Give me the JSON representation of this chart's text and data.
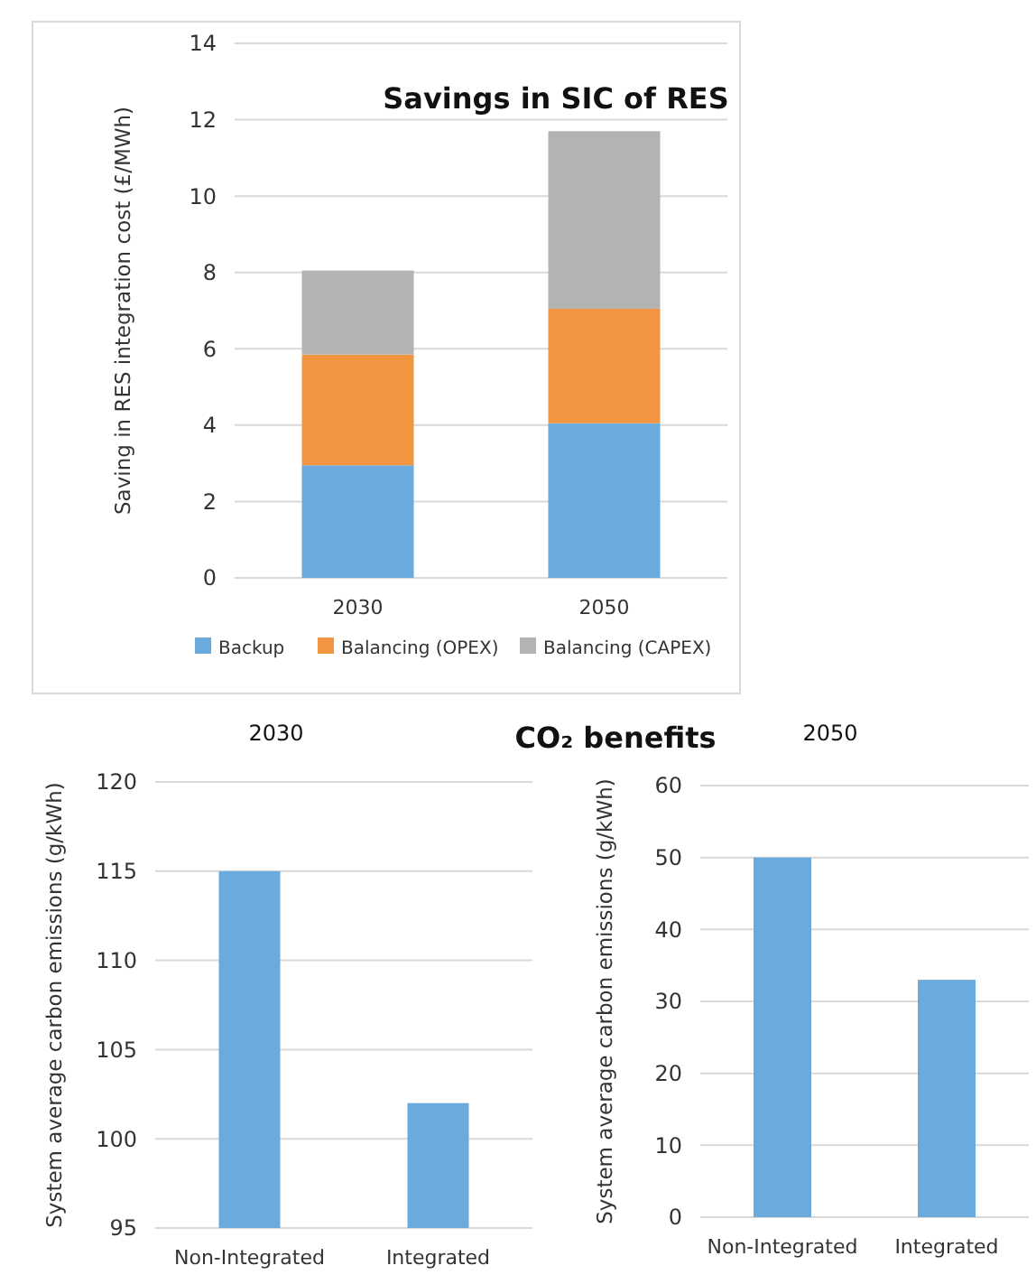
{
  "chart_data": [
    {
      "type": "bar",
      "title": "Savings in SIC of RES",
      "ylabel": "Saving in RES integration cost (£/MWh)",
      "categories": [
        "2030",
        "2050"
      ],
      "stacked": true,
      "series": [
        {
          "name": "Backup",
          "color": "#6aaadc",
          "values": [
            2.95,
            4.05
          ]
        },
        {
          "name": "Balancing (OPEX)",
          "color": "#f29540",
          "values": [
            2.9,
            3.0
          ]
        },
        {
          "name": "Balancing (CAPEX)",
          "color": "#b3b3b3",
          "values": [
            2.2,
            4.65
          ]
        }
      ],
      "ylim": [
        0,
        14
      ],
      "yticks": [
        0,
        2,
        4,
        6,
        8,
        10,
        12,
        14
      ],
      "grid": "y",
      "legend": "bottom"
    },
    {
      "type": "bar",
      "title": "2030",
      "subtitle": "CO₂ benefits",
      "ylabel": "System average carbon emissions (g/kWh)",
      "categories": [
        "Non-Integrated",
        "Integrated"
      ],
      "values": [
        115,
        102
      ],
      "color": "#6aaadc",
      "ylim": [
        95,
        120
      ],
      "yticks": [
        95,
        100,
        105,
        110,
        115,
        120
      ],
      "grid": "y"
    },
    {
      "type": "bar",
      "title": "2050",
      "ylabel": "System average carbon emissions (g/kWh)",
      "categories": [
        "Non-Integrated",
        "Integrated"
      ],
      "values": [
        50,
        33
      ],
      "color": "#6aaadc",
      "ylim": [
        0,
        60
      ],
      "yticks": [
        0,
        10,
        20,
        30,
        40,
        50,
        60
      ],
      "grid": "y"
    }
  ]
}
